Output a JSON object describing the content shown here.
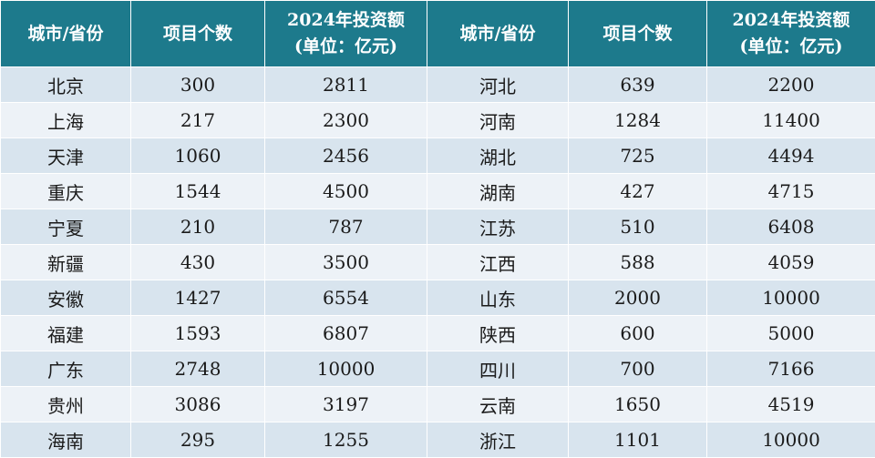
{
  "header": {
    "city": "城市/省份",
    "count": "项目个数",
    "invest_line1": "2024年投资额",
    "invest_line2": "(单位：亿元)"
  },
  "left": [
    {
      "name": "北京",
      "count": "300",
      "invest": "2811"
    },
    {
      "name": "上海",
      "count": "217",
      "invest": "2300"
    },
    {
      "name": "天津",
      "count": "1060",
      "invest": "2456"
    },
    {
      "name": "重庆",
      "count": "1544",
      "invest": "4500"
    },
    {
      "name": "宁夏",
      "count": "210",
      "invest": "787"
    },
    {
      "name": "新疆",
      "count": "430",
      "invest": "3500"
    },
    {
      "name": "安徽",
      "count": "1427",
      "invest": "6554"
    },
    {
      "name": "福建",
      "count": "1593",
      "invest": "6807"
    },
    {
      "name": "广东",
      "count": "2748",
      "invest": "10000"
    },
    {
      "name": "贵州",
      "count": "3086",
      "invest": "3197"
    },
    {
      "name": "海南",
      "count": "295",
      "invest": "1255"
    }
  ],
  "right": [
    {
      "name": "河北",
      "count": "639",
      "invest": "2200"
    },
    {
      "name": "河南",
      "count": "1284",
      "invest": "11400"
    },
    {
      "name": "湖北",
      "count": "725",
      "invest": "4494"
    },
    {
      "name": "湖南",
      "count": "427",
      "invest": "4715"
    },
    {
      "name": "江苏",
      "count": "510",
      "invest": "6408"
    },
    {
      "name": "江西",
      "count": "588",
      "invest": "4059"
    },
    {
      "name": "山东",
      "count": "2000",
      "invest": "10000"
    },
    {
      "name": "陕西",
      "count": "600",
      "invest": "5000"
    },
    {
      "name": "四川",
      "count": "700",
      "invest": "7166"
    },
    {
      "name": "云南",
      "count": "1650",
      "invest": "4519"
    },
    {
      "name": "浙江",
      "count": "1101",
      "invest": "10000"
    }
  ]
}
